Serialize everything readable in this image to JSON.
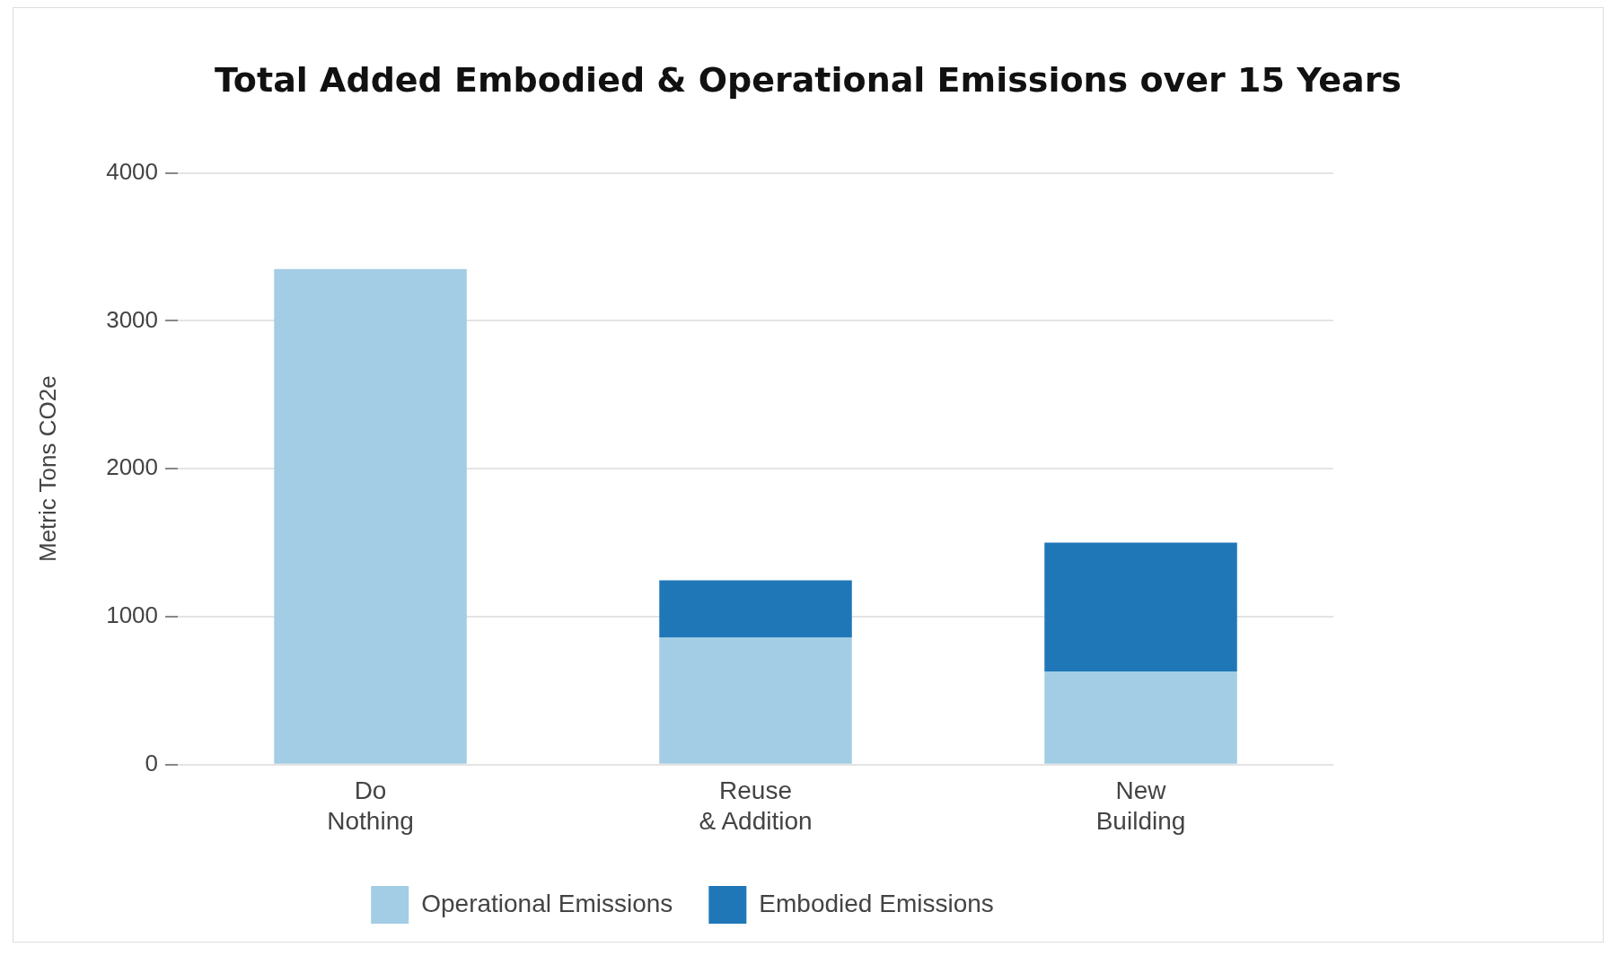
{
  "chart_data": {
    "type": "bar",
    "title": "Total Added Embodied & Operational Emissions over 15 Years",
    "ylabel": "Metric Tons CO2e",
    "categories": [
      "Do\nNothing",
      "Reuse\n& Addition",
      "New\nBuilding"
    ],
    "series": [
      {
        "name": "Operational Emissions",
        "color": "#a2cde4",
        "values": [
          3350,
          860,
          630
        ]
      },
      {
        "name": "Embodied Emissions",
        "color": "#1f77b8",
        "values": [
          0,
          385,
          870
        ]
      }
    ],
    "stacked": true,
    "ylim": [
      0,
      4000
    ],
    "yticks": [
      0,
      1000,
      2000,
      3000,
      4000
    ],
    "grid": "y",
    "legend": "bottom"
  }
}
